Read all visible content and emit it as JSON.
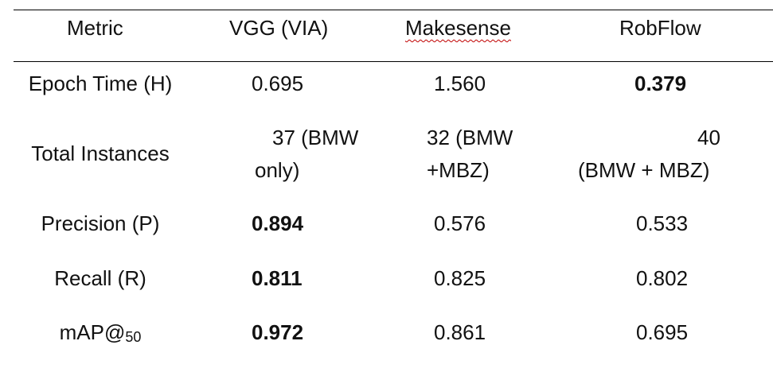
{
  "table": {
    "headers": [
      "Metric",
      "VGG (VIA)",
      "Makesense",
      "RobFlow"
    ],
    "rows": [
      {
        "metric": "Epoch Time (H)",
        "vgg": "0.695",
        "makesense": "1.560",
        "robflow": "0.379"
      },
      {
        "metric": "Total Instances",
        "vgg_line1": "37 (BMW",
        "vgg_line2": "only)",
        "makesense_line1": "32 (BMW",
        "makesense_line2": "+MBZ)",
        "robflow_line1": "40",
        "robflow_line2": "(BMW + MBZ)"
      },
      {
        "metric": "Precision (P)",
        "vgg": "0.894",
        "makesense": "0.576",
        "robflow": "0.533"
      },
      {
        "metric": "Recall (R)",
        "vgg": "0.811",
        "makesense": "0.825",
        "robflow": "0.802"
      },
      {
        "metric_prefix": "mAP@",
        "metric_sub": "50",
        "vgg": "0.972",
        "makesense": "0.861",
        "robflow": "0.695"
      }
    ]
  }
}
